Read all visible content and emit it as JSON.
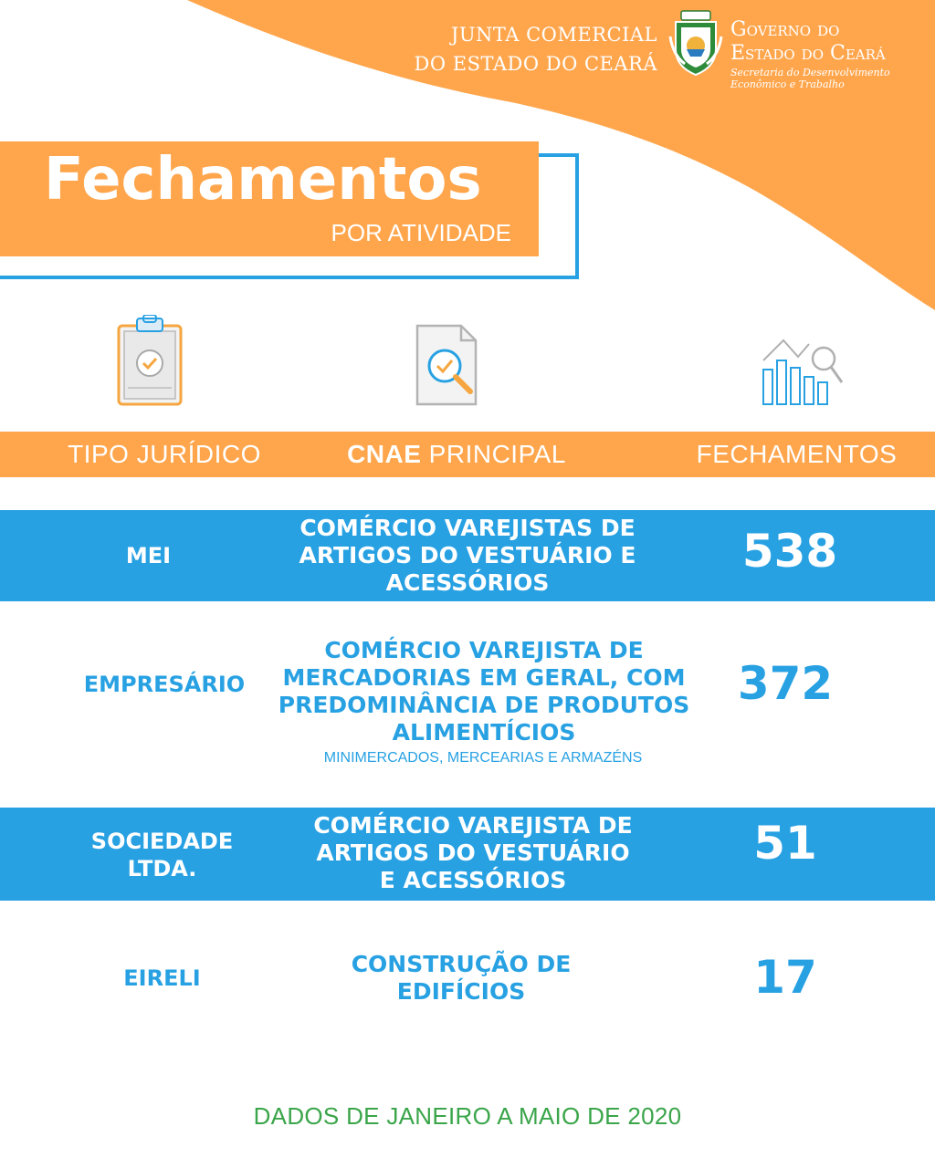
{
  "header": {
    "junta_line1": "JUNTA COMERCIAL",
    "junta_line2": "DO ESTADO DO CEARÁ",
    "gov_line1": "Governo do",
    "gov_line2": "Estado do Ceará",
    "gov_sub_line1": "Secretaria do Desenvolvimento",
    "gov_sub_line2": "Econômico e Trabalho"
  },
  "title": {
    "main": "Fechamentos",
    "sub": "POR ATIVIDADE"
  },
  "columns": {
    "tipo": "TIPO JURÍDICO",
    "cnae_bold": "CNAE",
    "cnae_rest": " PRINCIPAL",
    "fechamentos": "FECHAMENTOS"
  },
  "icons": [
    "clipboard-check-icon",
    "document-search-icon",
    "bar-chart-search-icon"
  ],
  "rows": [
    {
      "type": "MEI",
      "desc_lines": [
        "COMÉRCIO VAREJISTAS DE",
        "ARTIGOS DO VESTUÁRIO E",
        "ACESSÓRIOS"
      ],
      "count": "538"
    },
    {
      "type": "EMPRESÁRIO",
      "desc_lines": [
        "COMÉRCIO VAREJISTA DE",
        "MERCADORIAS EM GERAL, COM",
        "PREDOMINÂNCIA DE PRODUTOS",
        "ALIMENTÍCIOS"
      ],
      "note": "MINIMERCADOS, MERCEARIAS E ARMAZÉNS",
      "count": "372"
    },
    {
      "type_lines": [
        "SOCIEDADE",
        "LTDA."
      ],
      "desc_lines": [
        "COMÉRCIO VAREJISTA DE",
        "ARTIGOS DO VESTUÁRIO",
        "E ACESSÓRIOS"
      ],
      "count": "51"
    },
    {
      "type": "EIRELI",
      "desc_lines": [
        "CONSTRUÇÃO DE",
        "EDIFÍCIOS"
      ],
      "count": "17"
    }
  ],
  "footer": "DADOS DE JANEIRO A MAIO DE 2020",
  "colors": {
    "orange": "#ffa64d",
    "blue": "#28a1e3",
    "green": "#3aa54a"
  }
}
